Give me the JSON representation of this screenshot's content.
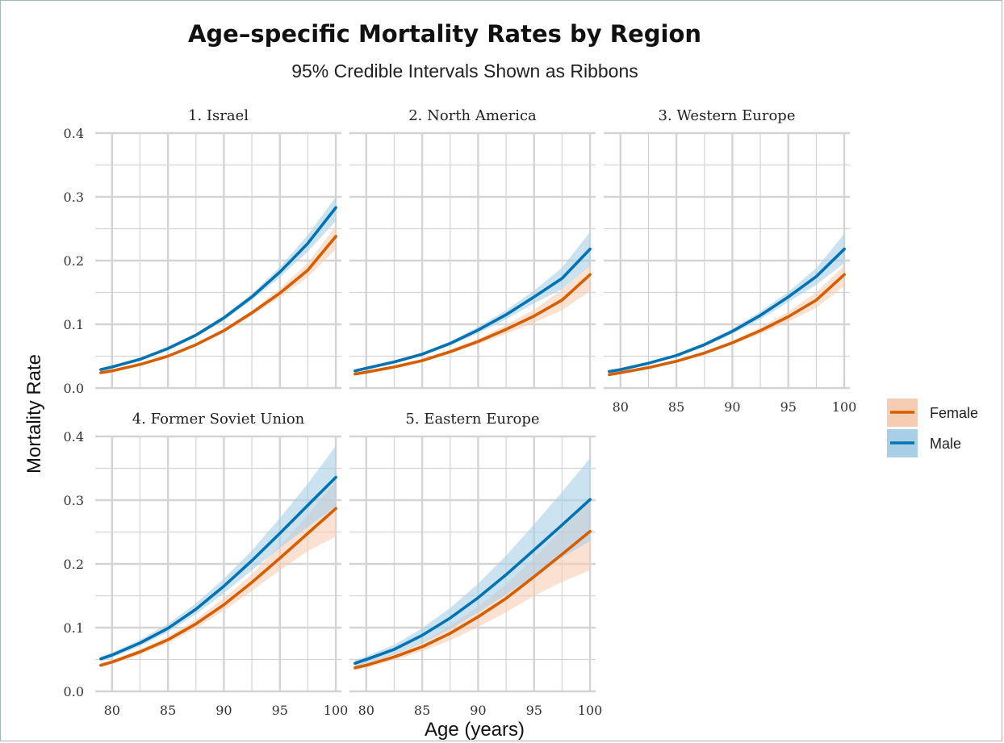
{
  "chart_data": {
    "type": "line",
    "title": "Age–specific Mortality Rates by Region",
    "subtitle": "95% Credible Intervals Shown as Ribbons",
    "xlabel": "Age (years)",
    "ylabel": "Mortality Rate",
    "xlim": [
      78.5,
      100.5
    ],
    "ylim": [
      0,
      0.4
    ],
    "xticks": [
      "80",
      "85",
      "90",
      "95",
      "100"
    ],
    "yticks": [
      "0.0",
      "0.1",
      "0.2",
      "0.3",
      "0.4"
    ],
    "x": [
      79,
      80,
      82.5,
      85,
      87.5,
      90,
      92.5,
      95,
      97.5,
      100
    ],
    "legend": {
      "position": "right",
      "entries": [
        "Female",
        "Male"
      ]
    },
    "colors": {
      "Female": "#d55e00",
      "Male": "#0072b2",
      "Female_band": "#f6cdb3",
      "Male_band": "#a9cfe7"
    },
    "grid": true,
    "panels": [
      {
        "label": "1. Israel",
        "series": [
          {
            "name": "Female",
            "values": [
              0.024,
              0.027,
              0.037,
              0.05,
              0.068,
              0.09,
              0.118,
              0.149,
              0.185,
              0.238
            ],
            "lower": [
              0.022,
              0.025,
              0.035,
              0.048,
              0.066,
              0.087,
              0.114,
              0.142,
              0.174,
              0.218
            ],
            "upper": [
              0.026,
              0.029,
              0.039,
              0.052,
              0.07,
              0.093,
              0.122,
              0.156,
              0.196,
              0.255
            ]
          },
          {
            "name": "Male",
            "values": [
              0.029,
              0.033,
              0.045,
              0.062,
              0.083,
              0.11,
              0.143,
              0.182,
              0.227,
              0.283
            ],
            "lower": [
              0.027,
              0.031,
              0.043,
              0.059,
              0.08,
              0.106,
              0.138,
              0.174,
              0.214,
              0.262
            ],
            "upper": [
              0.031,
              0.035,
              0.047,
              0.065,
              0.086,
              0.114,
              0.148,
              0.19,
              0.24,
              0.3
            ]
          }
        ]
      },
      {
        "label": "2. North America",
        "series": [
          {
            "name": "Female",
            "values": [
              0.022,
              0.025,
              0.033,
              0.043,
              0.057,
              0.073,
              0.092,
              0.113,
              0.138,
              0.178
            ],
            "lower": [
              0.02,
              0.023,
              0.031,
              0.041,
              0.054,
              0.069,
              0.085,
              0.103,
              0.122,
              0.152
            ],
            "upper": [
              0.024,
              0.027,
              0.035,
              0.045,
              0.06,
              0.077,
              0.099,
              0.123,
              0.154,
              0.195
            ]
          },
          {
            "name": "Male",
            "values": [
              0.027,
              0.031,
              0.041,
              0.053,
              0.07,
              0.091,
              0.115,
              0.143,
              0.172,
              0.218
            ],
            "lower": [
              0.025,
              0.029,
              0.039,
              0.051,
              0.067,
              0.086,
              0.108,
              0.133,
              0.155,
              0.193
            ],
            "upper": [
              0.029,
              0.033,
              0.043,
              0.055,
              0.073,
              0.096,
              0.122,
              0.153,
              0.189,
              0.245
            ]
          }
        ]
      },
      {
        "label": "3. Western Europe",
        "series": [
          {
            "name": "Female",
            "values": [
              0.021,
              0.024,
              0.032,
              0.042,
              0.055,
              0.071,
              0.09,
              0.112,
              0.138,
              0.178
            ],
            "lower": [
              0.019,
              0.022,
              0.03,
              0.04,
              0.053,
              0.068,
              0.085,
              0.104,
              0.126,
              0.16
            ],
            "upper": [
              0.023,
              0.026,
              0.034,
              0.044,
              0.057,
              0.074,
              0.095,
              0.12,
              0.15,
              0.192
            ]
          },
          {
            "name": "Male",
            "values": [
              0.026,
              0.029,
              0.039,
              0.051,
              0.068,
              0.089,
              0.114,
              0.143,
              0.175,
              0.218
            ],
            "lower": [
              0.024,
              0.027,
              0.037,
              0.049,
              0.065,
              0.085,
              0.108,
              0.135,
              0.162,
              0.196
            ],
            "upper": [
              0.028,
              0.031,
              0.041,
              0.053,
              0.071,
              0.093,
              0.12,
              0.151,
              0.188,
              0.242
            ]
          }
        ]
      },
      {
        "label": "4. Former Soviet Union",
        "series": [
          {
            "name": "Female",
            "values": [
              0.041,
              0.046,
              0.062,
              0.081,
              0.106,
              0.136,
              0.171,
              0.209,
              0.248,
              0.287
            ],
            "lower": [
              0.038,
              0.043,
              0.058,
              0.076,
              0.099,
              0.127,
              0.158,
              0.19,
              0.22,
              0.243
            ],
            "upper": [
              0.044,
              0.049,
              0.066,
              0.086,
              0.113,
              0.146,
              0.184,
              0.229,
              0.277,
              0.33
            ]
          },
          {
            "name": "Male",
            "values": [
              0.051,
              0.057,
              0.076,
              0.099,
              0.129,
              0.165,
              0.205,
              0.248,
              0.292,
              0.336
            ],
            "lower": [
              0.047,
              0.053,
              0.071,
              0.093,
              0.121,
              0.154,
              0.19,
              0.225,
              0.258,
              0.29
            ],
            "upper": [
              0.055,
              0.061,
              0.081,
              0.106,
              0.138,
              0.177,
              0.221,
              0.272,
              0.326,
              0.385
            ]
          }
        ]
      },
      {
        "label": "5. Eastern Europe",
        "series": [
          {
            "name": "Female",
            "values": [
              0.037,
              0.041,
              0.054,
              0.07,
              0.091,
              0.117,
              0.146,
              0.18,
              0.215,
              0.251
            ],
            "lower": [
              0.033,
              0.037,
              0.049,
              0.063,
              0.08,
              0.101,
              0.124,
              0.15,
              0.172,
              0.19
            ],
            "upper": [
              0.041,
              0.045,
              0.059,
              0.077,
              0.102,
              0.133,
              0.168,
              0.209,
              0.255,
              0.3
            ]
          },
          {
            "name": "Male",
            "values": [
              0.044,
              0.05,
              0.066,
              0.088,
              0.115,
              0.147,
              0.183,
              0.222,
              0.261,
              0.301
            ],
            "lower": [
              0.039,
              0.044,
              0.058,
              0.076,
              0.098,
              0.124,
              0.152,
              0.182,
              0.21,
              0.236
            ],
            "upper": [
              0.049,
              0.055,
              0.073,
              0.099,
              0.131,
              0.169,
              0.213,
              0.262,
              0.313,
              0.366
            ]
          }
        ]
      }
    ]
  }
}
